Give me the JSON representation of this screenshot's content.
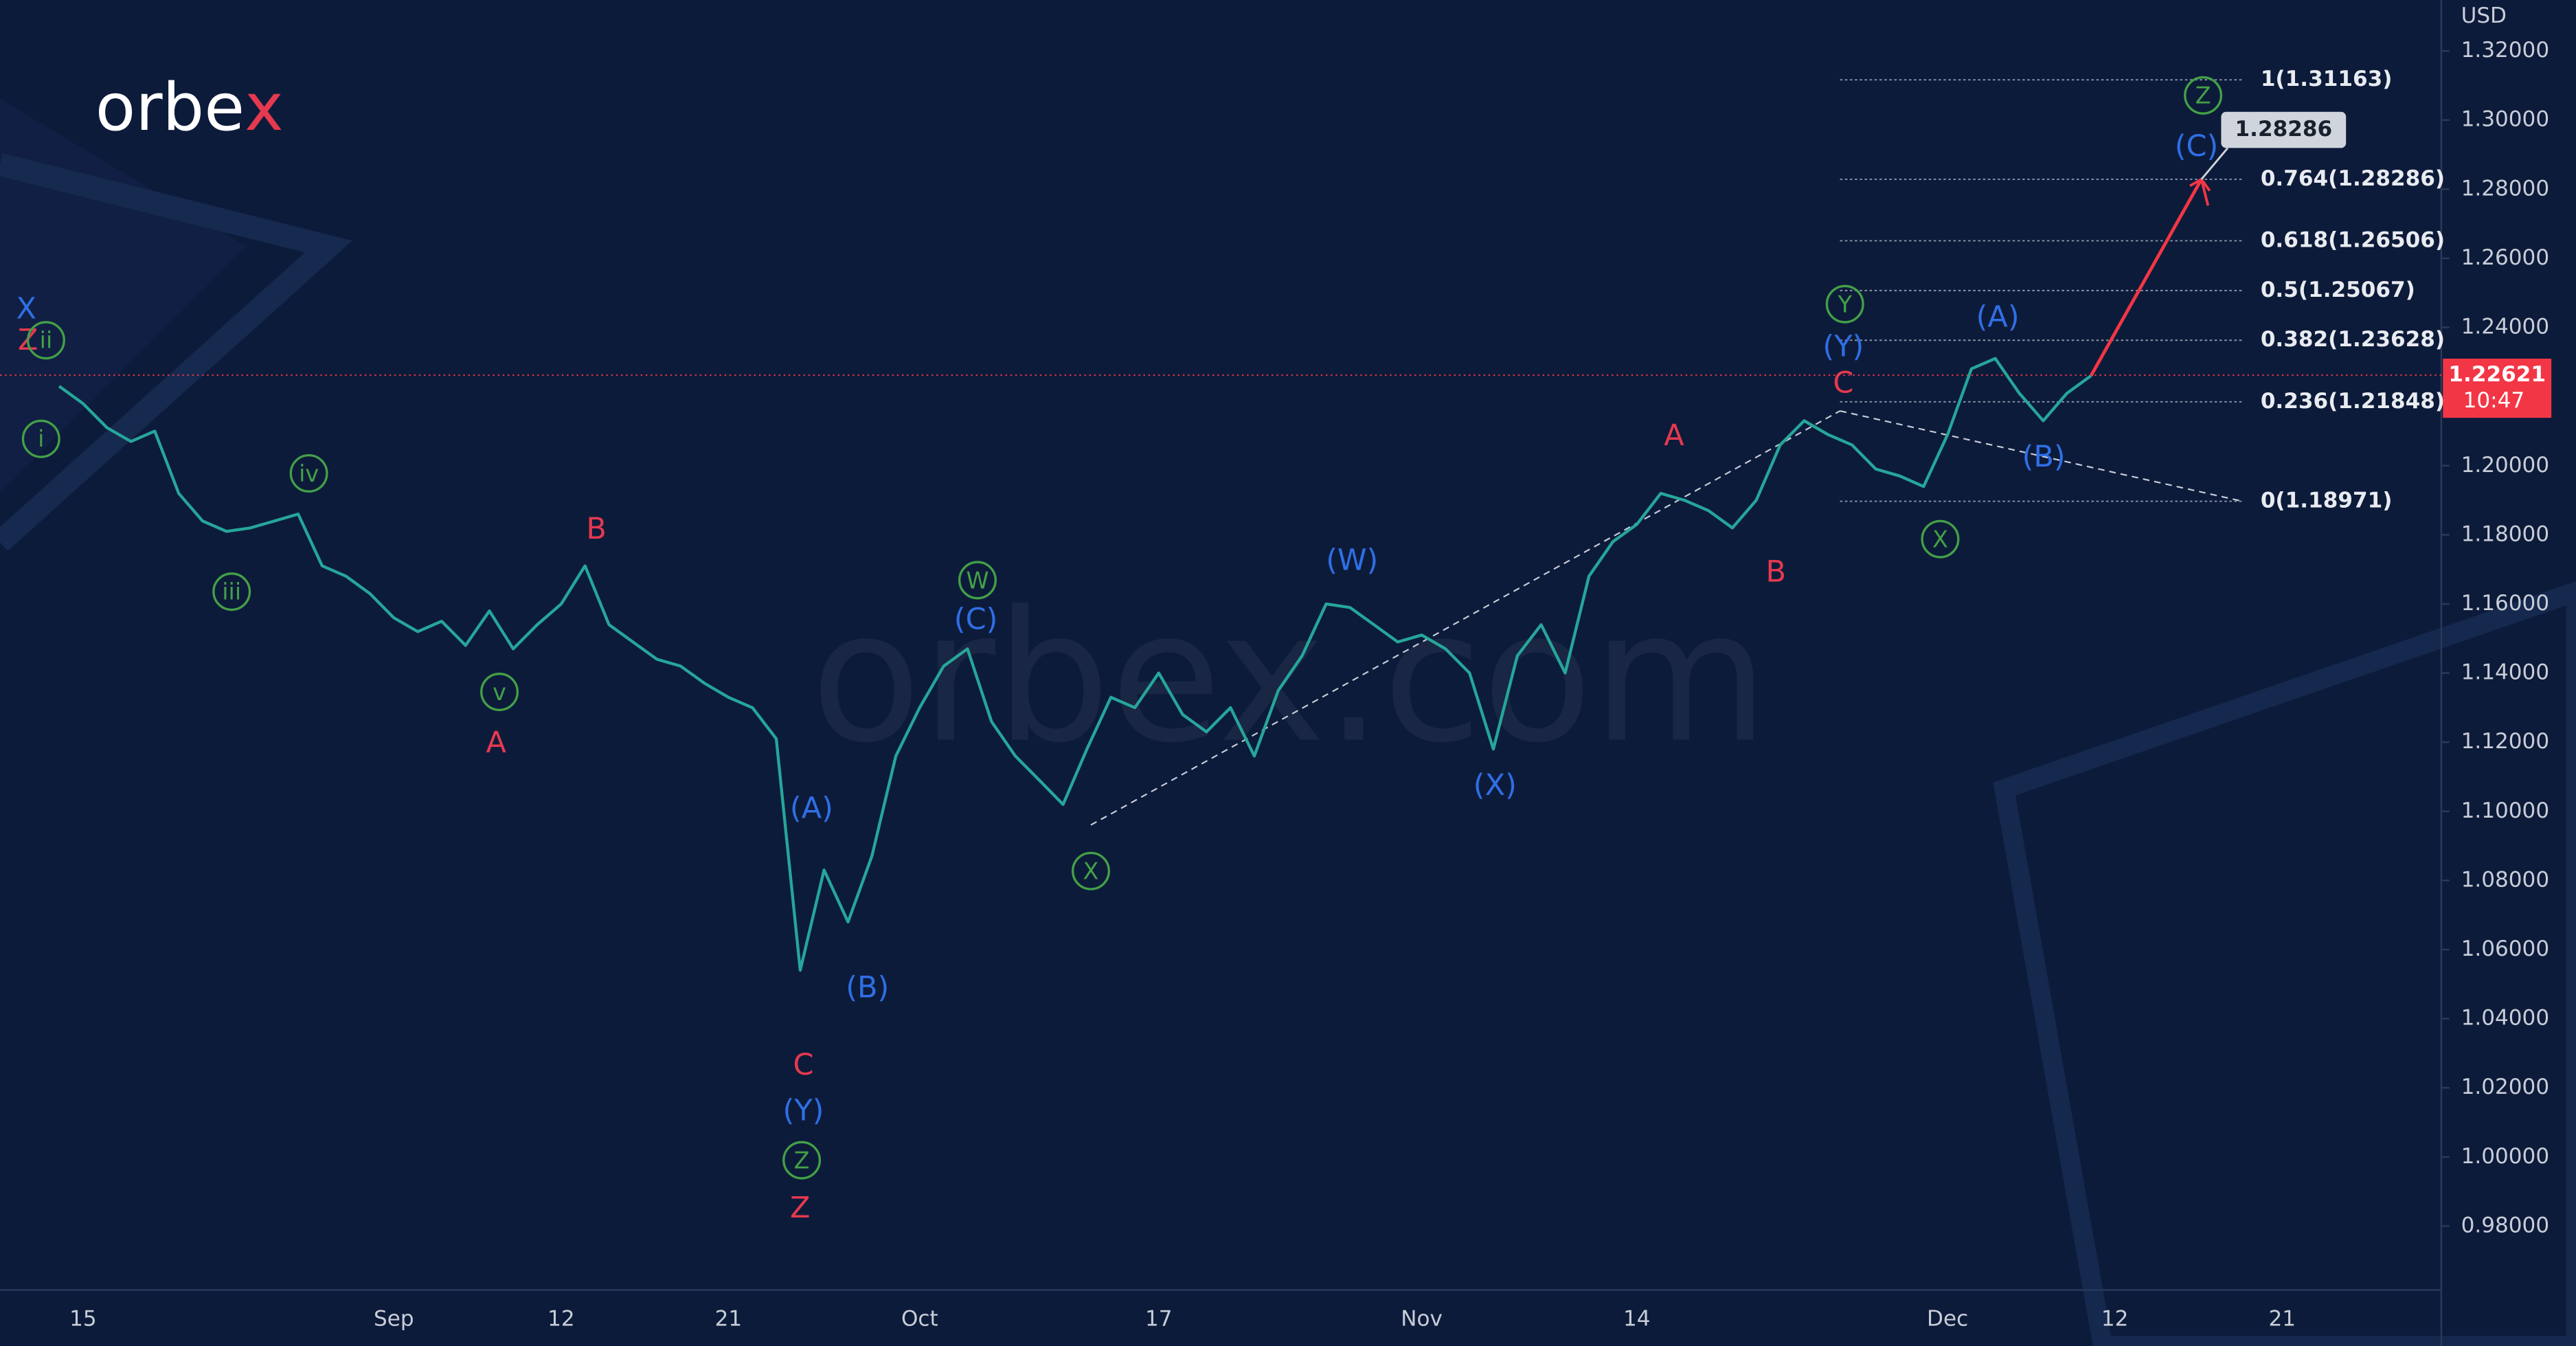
{
  "brand": [
    "orbe",
    "x"
  ],
  "watermark": "orbex.com",
  "chart_data": {
    "type": "line",
    "currency": "USD",
    "color": "#26a69a",
    "grid": false,
    "categories": [
      null,
      "15",
      null,
      null,
      null,
      null,
      null,
      null,
      null,
      null,
      null,
      null,
      null,
      null,
      "Sep",
      null,
      null,
      null,
      null,
      null,
      null,
      "12",
      null,
      null,
      null,
      null,
      null,
      null,
      "21",
      null,
      null,
      null,
      null,
      null,
      null,
      null,
      "Oct",
      null,
      null,
      null,
      null,
      null,
      null,
      null,
      null,
      null,
      "17",
      null,
      null,
      null,
      null,
      null,
      null,
      null,
      null,
      null,
      null,
      "Nov",
      null,
      null,
      null,
      null,
      null,
      null,
      null,
      null,
      "14",
      null,
      null,
      null,
      null,
      null,
      null,
      null,
      null,
      null,
      null,
      null,
      null,
      "Dec",
      null,
      null,
      null,
      null,
      null,
      null,
      "12",
      null,
      null,
      null,
      null,
      null,
      null,
      "21",
      null,
      null
    ],
    "values": [
      1.223,
      1.218,
      1.211,
      1.207,
      1.21,
      1.192,
      1.184,
      1.181,
      1.182,
      1.184,
      1.186,
      1.171,
      1.168,
      1.163,
      1.156,
      1.152,
      1.155,
      1.148,
      1.158,
      1.147,
      1.154,
      1.16,
      1.171,
      1.154,
      1.149,
      1.144,
      1.142,
      1.137,
      1.133,
      1.13,
      1.121,
      1.054,
      1.083,
      1.068,
      1.087,
      1.116,
      1.13,
      1.142,
      1.147,
      1.126,
      1.116,
      1.109,
      1.102,
      1.118,
      1.133,
      1.13,
      1.14,
      1.128,
      1.123,
      1.13,
      1.116,
      1.135,
      1.145,
      1.16,
      1.159,
      1.154,
      1.149,
      1.151,
      1.147,
      1.14,
      1.118,
      1.145,
      1.154,
      1.14,
      1.168,
      1.178,
      1.183,
      1.192,
      1.19,
      1.187,
      1.182,
      1.19,
      1.206,
      1.213,
      1.209,
      1.206,
      1.199,
      1.197,
      1.194,
      1.209,
      1.228,
      1.231,
      1.221,
      1.213,
      1.221,
      1.226,
      null,
      null,
      null,
      null,
      null,
      null,
      null,
      null,
      null,
      null
    ],
    "ylim": [
      0.9615,
      1.3347
    ],
    "yticks": [
      {
        "value": 1.32,
        "label": "1.32000"
      },
      {
        "value": 1.3,
        "label": "1.30000"
      },
      {
        "value": 1.28,
        "label": "1.28000"
      },
      {
        "value": 1.26,
        "label": "1.26000"
      },
      {
        "value": 1.24,
        "label": "1.24000"
      },
      {
        "value": 1.22,
        "label": "1.22000"
      },
      {
        "value": 1.2,
        "label": "1.20000"
      },
      {
        "value": 1.18,
        "label": "1.18000"
      },
      {
        "value": 1.16,
        "label": "1.16000"
      },
      {
        "value": 1.14,
        "label": "1.14000"
      },
      {
        "value": 1.12,
        "label": "1.12000"
      },
      {
        "value": 1.1,
        "label": "1.10000"
      },
      {
        "value": 1.08,
        "label": "1.08000"
      },
      {
        "value": 1.06,
        "label": "1.06000"
      },
      {
        "value": 1.04,
        "label": "1.04000"
      },
      {
        "value": 1.02,
        "label": "1.02000"
      },
      {
        "value": 1.0,
        "label": "1.00000"
      },
      {
        "value": 0.98,
        "label": "0.98000"
      }
    ],
    "current_price": 1.22621,
    "countdown": "10:47",
    "current_color": "#f23645",
    "fib_levels": [
      {
        "value": 1.31163,
        "label": "1(1.31163)"
      },
      {
        "value": 1.28286,
        "label": "0.764(1.28286)"
      },
      {
        "value": 1.26506,
        "label": "0.618(1.26506)"
      },
      {
        "value": 1.25067,
        "label": "0.5(1.25067)"
      },
      {
        "value": 1.23628,
        "label": "0.382(1.23628)"
      },
      {
        "value": 1.21848,
        "label": "0.236(1.21848)"
      },
      {
        "value": 1.18971,
        "label": "0(1.18971)"
      }
    ],
    "forecast": {
      "target": 1.28286,
      "color": "#f23645"
    },
    "annotations": [
      {
        "text": "X",
        "color": "#2f6fe6",
        "circled": false
      },
      {
        "text": "Z",
        "color": "#e5394f",
        "circled": false
      },
      {
        "text": "ii",
        "color": "#43a047",
        "circled": true
      },
      {
        "text": "i",
        "color": "#43a047",
        "circled": true
      },
      {
        "text": "iii",
        "color": "#43a047",
        "circled": true
      },
      {
        "text": "iv",
        "color": "#43a047",
        "circled": true
      },
      {
        "text": "v",
        "color": "#43a047",
        "circled": true
      },
      {
        "text": "A",
        "color": "#e5394f",
        "circled": false
      },
      {
        "text": "B",
        "color": "#e5394f",
        "circled": false
      },
      {
        "text": "(A)",
        "color": "#2f6fe6",
        "circled": false
      },
      {
        "text": "(B)",
        "color": "#2f6fe6",
        "circled": false
      },
      {
        "text": "C",
        "color": "#e5394f",
        "circled": false
      },
      {
        "text": "(Y)",
        "color": "#2f6fe6",
        "circled": false
      },
      {
        "text": "Z",
        "color": "#43a047",
        "circled": true
      },
      {
        "text": "Z",
        "color": "#e5394f",
        "circled": false
      },
      {
        "text": "W",
        "color": "#43a047",
        "circled": true
      },
      {
        "text": "(C)",
        "color": "#2f6fe6",
        "circled": false
      },
      {
        "text": "X",
        "color": "#43a047",
        "circled": true
      },
      {
        "text": "(W)",
        "color": "#2f6fe6",
        "circled": false
      },
      {
        "text": "(X)",
        "color": "#2f6fe6",
        "circled": false
      },
      {
        "text": "A",
        "color": "#e5394f",
        "circled": false
      },
      {
        "text": "B",
        "color": "#e5394f",
        "circled": false
      },
      {
        "text": "C",
        "color": "#e5394f",
        "circled": false
      },
      {
        "text": "Y",
        "color": "#43a047",
        "circled": true
      },
      {
        "text": "(Y)",
        "color": "#2f6fe6",
        "circled": false
      },
      {
        "text": "X",
        "color": "#43a047",
        "circled": true
      },
      {
        "text": "(A)",
        "color": "#2f6fe6",
        "circled": false
      },
      {
        "text": "(B)",
        "color": "#2f6fe6",
        "circled": false
      },
      {
        "text": "Z",
        "color": "#43a047",
        "circled": true
      },
      {
        "text": "(C)",
        "color": "#2f6fe6",
        "circled": false
      }
    ]
  }
}
